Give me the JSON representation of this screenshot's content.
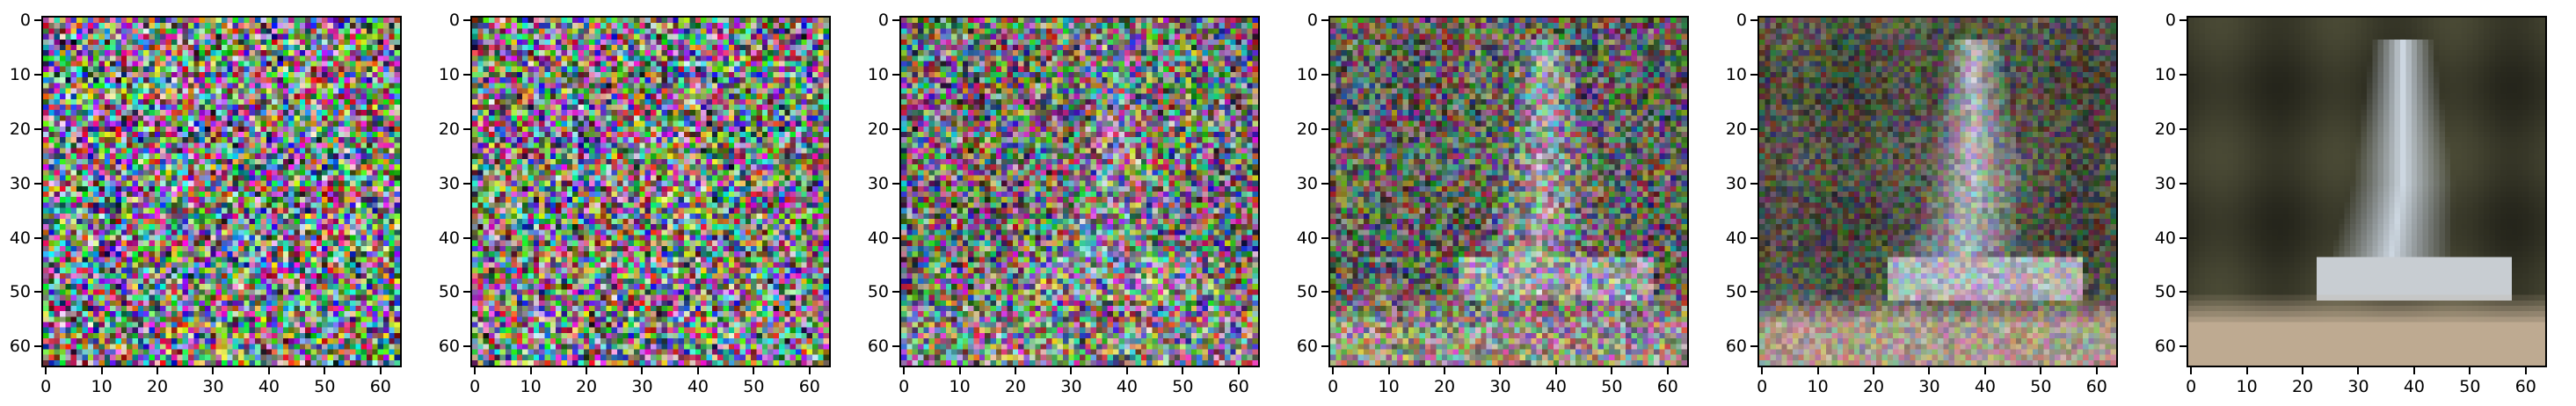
{
  "figure": {
    "panels": [
      {
        "id": "noise-level-1",
        "blend": 0.0
      },
      {
        "id": "noise-level-2",
        "blend": 0.05
      },
      {
        "id": "noise-level-3",
        "blend": 0.18
      },
      {
        "id": "noise-level-4",
        "blend": 0.42
      },
      {
        "id": "noise-level-5",
        "blend": 0.68
      },
      {
        "id": "noise-level-6",
        "blend": 1.0
      }
    ],
    "image_grid_size": 64,
    "y_ticks": [
      "0",
      "10",
      "20",
      "30",
      "40",
      "50",
      "60"
    ],
    "x_ticks": [
      "0",
      "10",
      "20",
      "30",
      "40",
      "50",
      "60"
    ],
    "colors": {
      "axis": "#000000",
      "background": "#ffffff"
    }
  }
}
